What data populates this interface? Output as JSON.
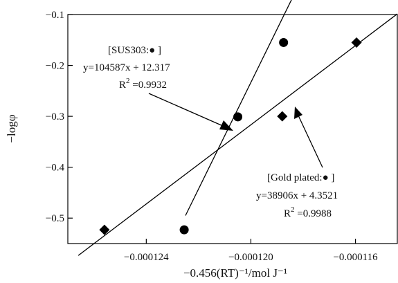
{
  "chart_data": {
    "type": "scatter",
    "title": "",
    "xlabel": "−0.456(RT)⁻¹/mol J⁻¹",
    "ylabel": "−logφ",
    "xlim": [
      -0.000127,
      -0.0001144
    ],
    "ylim": [
      -0.55,
      -0.1
    ],
    "x_ticks": [
      -0.000124,
      -0.00012,
      -0.000116
    ],
    "x_tick_labels": [
      "−0.000124",
      "−0.000120",
      "−0.000116"
    ],
    "y_ticks": [
      -0.1,
      -0.2,
      -0.3,
      -0.4,
      -0.5
    ],
    "y_tick_labels": [
      "−0.1",
      "−0.2",
      "−0.3",
      "−0.4",
      "−0.5"
    ],
    "series": [
      {
        "marker": "circle",
        "label": "[SUS303:● ]",
        "equation": "y=104587x + 12.317",
        "r2_prefix": "R",
        "r2_sup": "2",
        "r2_value": " =0.9932",
        "slope": 104587,
        "intercept": 12.317,
        "x": [
          -0.00012255,
          -0.0001205,
          -0.00011875
        ],
        "y": [
          -0.523,
          -0.301,
          -0.155
        ]
      },
      {
        "marker": "diamond",
        "label": "[Gold plated:● ]",
        "equation": "y=38906x + 4.3521",
        "r2_prefix": "R",
        "r2_sup": "2",
        "r2_value": " =0.9988",
        "slope": 38906,
        "intercept": 4.3521,
        "x": [
          -0.0001256,
          -0.0001188,
          -0.00011596
        ],
        "y": [
          -0.523,
          -0.3,
          -0.155
        ]
      }
    ]
  }
}
